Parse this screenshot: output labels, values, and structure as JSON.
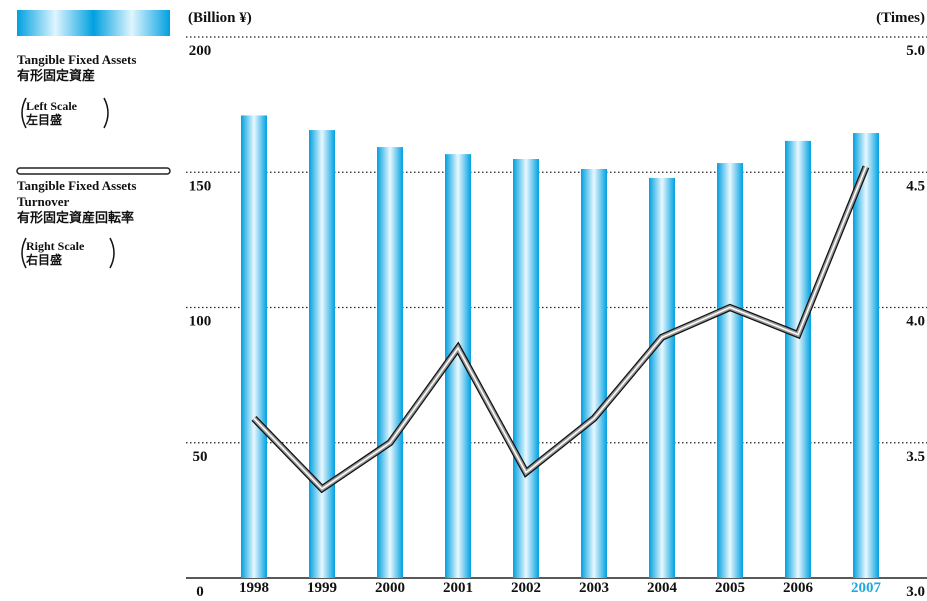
{
  "chart_data": {
    "type": "bar_line",
    "y_unit": "(Billion ¥)",
    "y2_unit": "(Times)",
    "categories": [
      "1998",
      "1999",
      "2000",
      "2001",
      "2002",
      "2003",
      "2004",
      "2005",
      "2006",
      "2007"
    ],
    "highlight_index": 9,
    "highlight_color": "#1fa8de",
    "series": [
      {
        "name": "Tangible Fixed Assets",
        "name_ja": "有形固定資産",
        "scale": "Left Scale",
        "scale_ja": "左目盛",
        "kind": "bar",
        "axis": "y",
        "color": "#00a0e0",
        "values": [
          171,
          165.6,
          159.3,
          156.7,
          154.9,
          151.2,
          147.9,
          153.4,
          161.6,
          164.5
        ]
      },
      {
        "name": "Tangible Fixed Assets Turnover",
        "name_ja": "有形固定資産回転率",
        "scale": "Right Scale",
        "scale_ja": "右目盛",
        "kind": "line",
        "axis": "y2",
        "color": "#9a9a9a",
        "values": [
          3.59,
          3.33,
          3.5,
          3.85,
          3.39,
          3.59,
          3.89,
          4.0,
          3.9,
          4.52
        ]
      }
    ],
    "ylim": [
      0,
      200
    ],
    "yticks": [
      0,
      50,
      100,
      150,
      200
    ],
    "y2lim": [
      3,
      5
    ],
    "y2ticks": [
      {
        "value": 3,
        "label": "3.0"
      },
      {
        "value": 3.5,
        "label": "3.5"
      },
      {
        "value": 4,
        "label": "4.0"
      },
      {
        "value": 4.5,
        "label": "4.5"
      },
      {
        "value": 5,
        "label": "5.0"
      }
    ],
    "grid": true
  }
}
